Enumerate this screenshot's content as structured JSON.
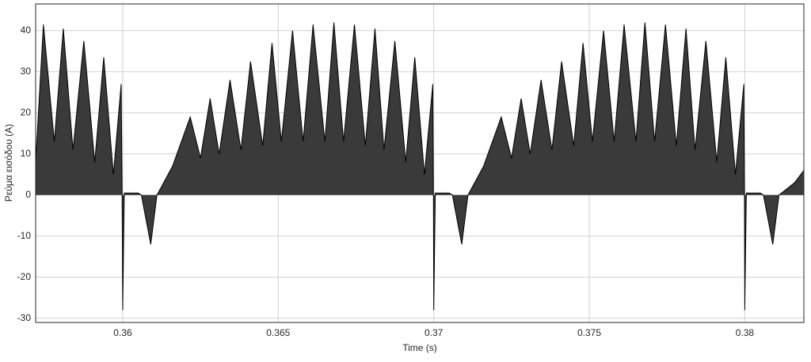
{
  "chart_data": {
    "type": "area",
    "xlabel": "Time (s)",
    "ylabel": "Ρεύμα εισόδου (A)",
    "xlim": [
      0.3572,
      0.3819
    ],
    "ylim": [
      -31,
      46.5
    ],
    "xticks": [
      0.36,
      0.365,
      0.37,
      0.375,
      0.38
    ],
    "yticks": [
      -30,
      -20,
      -10,
      0,
      10,
      20,
      30,
      40
    ],
    "grid": true,
    "color": "#000000",
    "x": [
      0.3572,
      0.35745,
      0.3578,
      0.35809,
      0.3584,
      0.35875,
      0.3591,
      0.35939,
      0.3597,
      0.35995,
      0.35998,
      0.36,
      0.36005,
      0.3605,
      0.3606,
      0.3609,
      0.3611,
      0.3616,
      0.36217,
      0.3625,
      0.36281,
      0.3631,
      0.36345,
      0.3638,
      0.36411,
      0.3645,
      0.3648,
      0.3651,
      0.36546,
      0.3658,
      0.36612,
      0.3665,
      0.36679,
      0.3671,
      0.36745,
      0.3678,
      0.36811,
      0.3684,
      0.36875,
      0.3691,
      0.36939,
      0.3697,
      0.36997,
      0.36999,
      0.37,
      0.37005,
      0.3705,
      0.3706,
      0.3709,
      0.3711,
      0.3716,
      0.37217,
      0.3725,
      0.37281,
      0.3731,
      0.37345,
      0.3738,
      0.37411,
      0.3745,
      0.3748,
      0.3751,
      0.37546,
      0.3758,
      0.37612,
      0.3765,
      0.37679,
      0.3771,
      0.37745,
      0.3778,
      0.37811,
      0.3784,
      0.37875,
      0.3791,
      0.37939,
      0.3797,
      0.37997,
      0.37999,
      0.38,
      0.38005,
      0.3805,
      0.3806,
      0.3809,
      0.3811,
      0.3816,
      0.3819
    ],
    "values": [
      8,
      41.5,
      13,
      40.5,
      11,
      37.5,
      8,
      33.5,
      5,
      27,
      0,
      -28,
      0.5,
      0.5,
      0,
      -12,
      0,
      7,
      19,
      9,
      23.5,
      10,
      28,
      11,
      32.5,
      12,
      37,
      13,
      40,
      13,
      41.5,
      13,
      42,
      13,
      41.5,
      12,
      40.5,
      11,
      37.5,
      8,
      33.5,
      5,
      27,
      0,
      -28,
      0.5,
      0.5,
      0,
      -12,
      0,
      7,
      19,
      9,
      23.5,
      10,
      28,
      11,
      32.5,
      12,
      37,
      13,
      40,
      13,
      41.5,
      13,
      42,
      13,
      41.5,
      12,
      40.5,
      11,
      37.5,
      8,
      33.5,
      5,
      27,
      0,
      -28,
      0.5,
      0.5,
      0,
      -12,
      0,
      3,
      6
    ]
  }
}
